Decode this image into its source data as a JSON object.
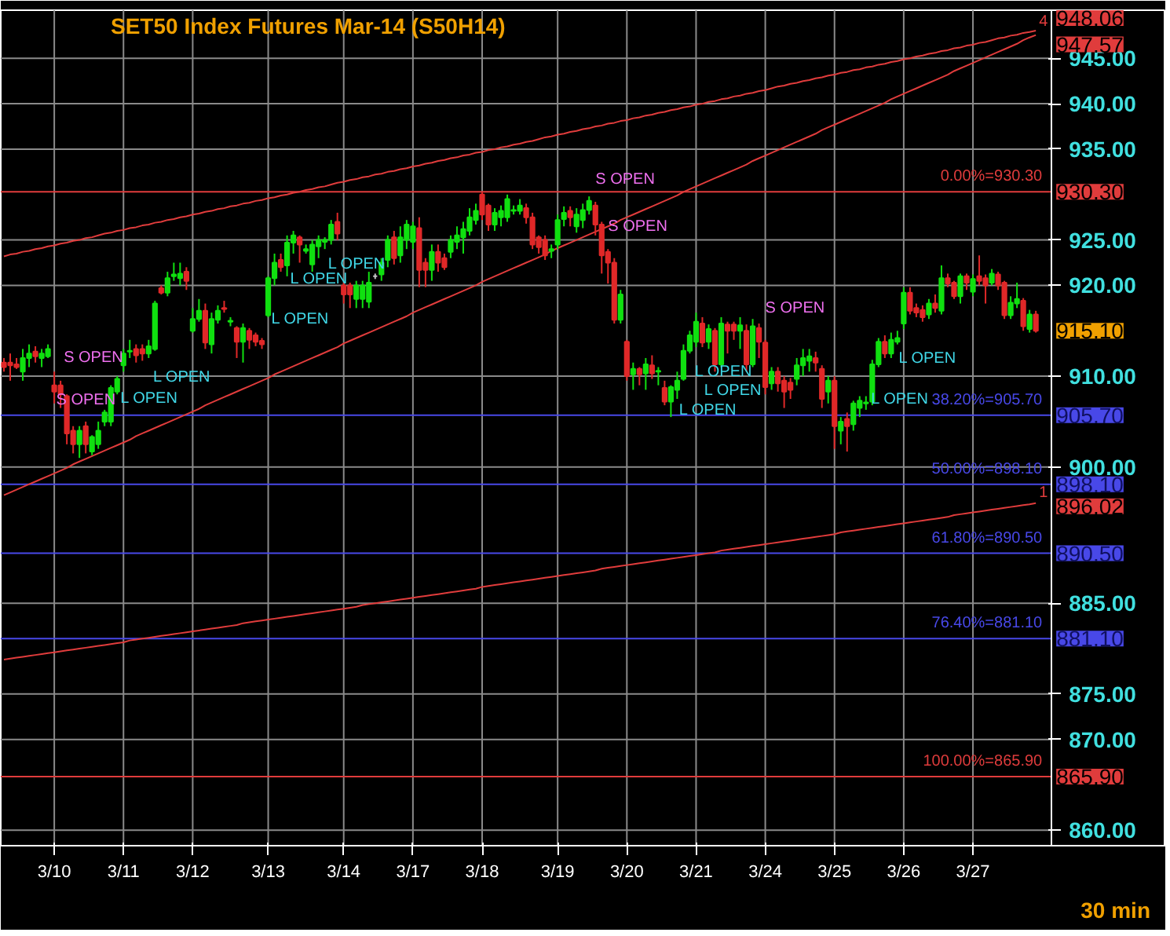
{
  "chart_data": {
    "type": "candlestick",
    "title": "SET50  Index Futures Mar-14  (S50H14)",
    "categories": [
      null,
      null,
      null,
      null,
      null,
      null,
      null,
      null,
      "3/10",
      null,
      null,
      null,
      null,
      null,
      null,
      null,
      null,
      null,
      null,
      "3/11",
      null,
      null,
      null,
      null,
      null,
      null,
      null,
      null,
      null,
      null,
      "3/12",
      null,
      null,
      null,
      null,
      null,
      null,
      null,
      null,
      null,
      null,
      null,
      "3/13",
      null,
      null,
      null,
      null,
      null,
      null,
      null,
      null,
      null,
      null,
      null,
      "3/14",
      null,
      null,
      null,
      null,
      null,
      null,
      null,
      null,
      null,
      null,
      "3/17",
      null,
      null,
      null,
      null,
      null,
      null,
      null,
      null,
      null,
      null,
      "3/18",
      null,
      null,
      null,
      null,
      null,
      null,
      null,
      null,
      null,
      null,
      null,
      "3/19",
      null,
      null,
      null,
      null,
      null,
      null,
      null,
      null,
      null,
      null,
      "3/20",
      null,
      null,
      null,
      null,
      null,
      null,
      null,
      null,
      null,
      null,
      "3/21",
      null,
      null,
      null,
      null,
      null,
      null,
      null,
      null,
      null,
      null,
      "3/24",
      null,
      null,
      null,
      null,
      null,
      null,
      null,
      null,
      null,
      null,
      "3/25",
      null,
      null,
      null,
      null,
      null,
      null,
      null,
      null,
      null,
      null,
      "3/26",
      null,
      null,
      null,
      null,
      null,
      null,
      null,
      null,
      null,
      null,
      "3/27",
      null,
      null,
      null,
      null,
      null,
      null,
      null,
      null,
      null,
      null
    ],
    "ohlc": [
      [
        911.5,
        912,
        910.5,
        911
      ],
      [
        911.5,
        912.5,
        909.5,
        911.2
      ],
      [
        911.3,
        912,
        910.8,
        911
      ],
      [
        910.5,
        913,
        909.5,
        912
      ],
      [
        912,
        913.5,
        911,
        912.5
      ],
      [
        912.7,
        913.3,
        911.5,
        912.2
      ],
      [
        912,
        913,
        911,
        912.5
      ],
      [
        912.2,
        913.5,
        912,
        913
      ],
      [
        909,
        910.5,
        907,
        908.3
      ],
      [
        909,
        909.5,
        906.5,
        908
      ],
      [
        907.8,
        908,
        902.5,
        903.7
      ],
      [
        904,
        904.5,
        901.5,
        902.5
      ],
      [
        902.5,
        904.5,
        901,
        904
      ],
      [
        904.5,
        905,
        901.5,
        902.5
      ],
      [
        901.7,
        903.5,
        901.3,
        903.3
      ],
      [
        902.5,
        905,
        902,
        904
      ],
      [
        905,
        906.3,
        904.5,
        906
      ],
      [
        905,
        909,
        904.5,
        908.7
      ],
      [
        908.3,
        910,
        908,
        909.7
      ],
      [
        911.2,
        913,
        910.5,
        912.5
      ],
      [
        912.7,
        914,
        912,
        912.8
      ],
      [
        913,
        913.5,
        911.5,
        912.3
      ],
      [
        913,
        913.5,
        911.7,
        912.5
      ],
      [
        912.5,
        914,
        912,
        913.3
      ],
      [
        913,
        918.3,
        912.8,
        918
      ],
      [
        919.7,
        920,
        919,
        919.2
      ],
      [
        919.2,
        921.5,
        918.8,
        920.8
      ],
      [
        921,
        922.5,
        920.5,
        921.2
      ],
      [
        920.8,
        922.5,
        920,
        921.3
      ],
      [
        921.5,
        922,
        919.5,
        920.5
      ],
      [
        915,
        917.5,
        914.8,
        916.3
      ],
      [
        916.3,
        918.5,
        916,
        917.2
      ],
      [
        917.2,
        918,
        913,
        913.7
      ],
      [
        913.5,
        917,
        912.5,
        916.3
      ],
      [
        916.2,
        917.8,
        915.8,
        917.2
      ],
      [
        917.5,
        918.3,
        917,
        917.4
      ],
      [
        916,
        916.5,
        915.5,
        916.1
      ],
      [
        915.3,
        915.5,
        912,
        913.8
      ],
      [
        913.8,
        915.8,
        911.5,
        915.3
      ],
      [
        915,
        915.3,
        913,
        914
      ],
      [
        914.5,
        914.8,
        913.3,
        913.8
      ],
      [
        913.9,
        914.2,
        913,
        913.5
      ],
      [
        916.7,
        921,
        916.5,
        920.8
      ],
      [
        920.8,
        923.5,
        920,
        922.5
      ],
      [
        922.8,
        923.5,
        921.5,
        922
      ],
      [
        922.2,
        925.5,
        921,
        924.7
      ],
      [
        924.7,
        926,
        923.5,
        925.5
      ],
      [
        925.3,
        925.5,
        922.5,
        924.5
      ],
      [
        923.8,
        924.5,
        923.5,
        924
      ],
      [
        922.3,
        925,
        921.5,
        924.5
      ],
      [
        924.3,
        925.5,
        923,
        925
      ],
      [
        924.8,
        925.3,
        924,
        925
      ],
      [
        925,
        927.2,
        924.5,
        926.7
      ],
      [
        927,
        928,
        925,
        925.7
      ],
      [
        920,
        920.3,
        918,
        919
      ],
      [
        920,
        920.3,
        917.5,
        919
      ],
      [
        918.5,
        920.5,
        917.5,
        920
      ],
      [
        918.5,
        920.5,
        917.5,
        920
      ],
      [
        918.2,
        921.5,
        917.5,
        920.3
      ],
      [
        921,
        921.3,
        920.7,
        921
      ],
      [
        921.2,
        923,
        920.5,
        922.5
      ],
      [
        922.8,
        925.5,
        922,
        925
      ],
      [
        925.3,
        926,
        922.3,
        923
      ],
      [
        923.3,
        926.5,
        922.5,
        925.3
      ],
      [
        925,
        927.2,
        924,
        926.7
      ],
      [
        924.8,
        927,
        924,
        926.5
      ],
      [
        926.3,
        927.5,
        919.8,
        921.7
      ],
      [
        922.5,
        923,
        919.8,
        921.7
      ],
      [
        921.7,
        924.5,
        920.5,
        923.7
      ],
      [
        923.7,
        924.5,
        921.5,
        922.5
      ],
      [
        923,
        923.5,
        921.7,
        922
      ],
      [
        923.7,
        925.5,
        923,
        925
      ],
      [
        924.8,
        926.5,
        924,
        925.5
      ],
      [
        925.3,
        927,
        923.5,
        926.2
      ],
      [
        926,
        928.5,
        925.5,
        927.5
      ],
      [
        927.2,
        929,
        926.7,
        928.2
      ],
      [
        930,
        930.3,
        927.2,
        927.8
      ],
      [
        928.8,
        929,
        926,
        926.7
      ],
      [
        926.7,
        928.5,
        926,
        928
      ],
      [
        927.5,
        928.8,
        926.5,
        928.2
      ],
      [
        927.5,
        930,
        927,
        929.5
      ],
      [
        928.2,
        928.8,
        927.8,
        928.3
      ],
      [
        928.2,
        929.5,
        927.8,
        928.8
      ],
      [
        928.5,
        929,
        926.8,
        927.5
      ],
      [
        927.5,
        928,
        924,
        924.5
      ],
      [
        925.3,
        925.5,
        923.5,
        924.2
      ],
      [
        925,
        925.5,
        922.8,
        923.3
      ],
      [
        923.8,
        924.5,
        923,
        924
      ],
      [
        924.5,
        927.8,
        924,
        927.2
      ],
      [
        927.3,
        928.7,
        926.5,
        928
      ],
      [
        928.2,
        928.7,
        926.5,
        927.5
      ],
      [
        926.5,
        928.5,
        925.8,
        927.8
      ],
      [
        927.2,
        929,
        926.3,
        928.3
      ],
      [
        928.3,
        929.8,
        927.8,
        929.3
      ],
      [
        928.8,
        929.2,
        925.5,
        926.7
      ],
      [
        926.7,
        927,
        921.3,
        923.3
      ],
      [
        923.7,
        924,
        920.2,
        922.5
      ],
      [
        922.5,
        923,
        915.8,
        916.2
      ],
      [
        916.2,
        919.5,
        915.8,
        919
      ],
      [
        913.8,
        914,
        909.5,
        910
      ],
      [
        910.2,
        911.5,
        908.5,
        910.8
      ],
      [
        910.8,
        911,
        909,
        910.2
      ],
      [
        910.3,
        912,
        908.5,
        911.3
      ],
      [
        911.2,
        912.3,
        909.7,
        910.3
      ],
      [
        910.5,
        911,
        909,
        910.6
      ],
      [
        908.7,
        909.5,
        906.8,
        907.2
      ],
      [
        907.2,
        909,
        905.5,
        908.8
      ],
      [
        908.5,
        910.5,
        907.5,
        909.5
      ],
      [
        909.7,
        913.5,
        909.5,
        912.8
      ],
      [
        912.8,
        915,
        912.5,
        914.5
      ],
      [
        913.8,
        917,
        913.2,
        916
      ],
      [
        915.8,
        916.5,
        913.2,
        913.7
      ],
      [
        913.8,
        915.7,
        913,
        915.2
      ],
      [
        915,
        915.3,
        910.5,
        911.3
      ],
      [
        911.3,
        916.5,
        911,
        915.8
      ],
      [
        915.7,
        916,
        912.5,
        915
      ],
      [
        915.7,
        916,
        914,
        915
      ],
      [
        915,
        916.5,
        913,
        915.6
      ],
      [
        915,
        915.7,
        910.5,
        911.3
      ],
      [
        911.3,
        916.3,
        911,
        915.5
      ],
      [
        915.3,
        915.8,
        912,
        913.8
      ],
      [
        913.7,
        914,
        908,
        908.8
      ],
      [
        909.2,
        911,
        908.5,
        910.5
      ],
      [
        910.5,
        911,
        908.3,
        909.2
      ],
      [
        909.5,
        910,
        906.5,
        908.3
      ],
      [
        909.3,
        909.8,
        907.5,
        908.5
      ],
      [
        909.7,
        912,
        909,
        911.2
      ],
      [
        911.2,
        913,
        910,
        912
      ],
      [
        911.7,
        913,
        910.5,
        912.2
      ],
      [
        912,
        912.7,
        910.5,
        911.5
      ],
      [
        910.8,
        911.2,
        906.5,
        907.5
      ],
      [
        908.3,
        910,
        907,
        909.5
      ],
      [
        909.5,
        910,
        902,
        904.5
      ],
      [
        904,
        905.5,
        902.5,
        905
      ],
      [
        905.3,
        906,
        901.7,
        904.5
      ],
      [
        904.7,
        907.3,
        904,
        907
      ],
      [
        906.5,
        907.8,
        905.5,
        907.3
      ],
      [
        907,
        907.8,
        906.3,
        907.1
      ],
      [
        907.2,
        911.8,
        906.8,
        911.3
      ],
      [
        911.3,
        914.2,
        911,
        913.8
      ],
      [
        913.8,
        914.5,
        912,
        912.5
      ],
      [
        912.5,
        914.8,
        912,
        914
      ],
      [
        913.8,
        915,
        913.5,
        914.2
      ],
      [
        915.8,
        919.8,
        915.2,
        919.2
      ],
      [
        919.2,
        919.8,
        916.8,
        917.2
      ],
      [
        917.5,
        918,
        916.5,
        917
      ],
      [
        917.3,
        917.8,
        916,
        916.5
      ],
      [
        916.8,
        918.5,
        916.3,
        918
      ],
      [
        918,
        919,
        917,
        917.5
      ],
      [
        917.2,
        922.2,
        916.8,
        920.8
      ],
      [
        920.8,
        921.3,
        919.8,
        920.2
      ],
      [
        920.3,
        920.5,
        918.5,
        918.8
      ],
      [
        918.8,
        921.3,
        918,
        921
      ],
      [
        921,
        921.3,
        919.5,
        920.3
      ],
      [
        919.3,
        921.2,
        918.8,
        920.7
      ],
      [
        921,
        923.3,
        920,
        920.5
      ],
      [
        920.8,
        921.2,
        918,
        920
      ],
      [
        920.3,
        921.8,
        920,
        921.3
      ],
      [
        921.2,
        921.5,
        919.5,
        920
      ],
      [
        920.3,
        920.5,
        916.3,
        916.7
      ],
      [
        916.7,
        918.8,
        916.3,
        918.1
      ],
      [
        918,
        920.3,
        917.5,
        918.5
      ],
      [
        918.3,
        918.6,
        915,
        915.5
      ],
      [
        915.2,
        917.3,
        914.8,
        916.8
      ],
      [
        916.8,
        917.2,
        914.8,
        915
      ]
    ],
    "series": [
      {
        "type": "line",
        "color": "#e03c3c",
        "values": [
          923.2,
          923.4,
          923.5,
          923.7,
          923.8,
          924.0,
          924.1,
          924.3,
          924.4,
          924.6,
          924.7,
          924.9,
          925.0,
          925.2,
          925.3,
          925.5,
          925.7,
          925.8,
          926.0,
          926.1,
          926.3,
          926.4,
          926.6,
          926.7,
          926.9,
          927.0,
          927.2,
          927.3,
          927.5,
          927.6,
          927.8,
          927.9,
          928.1,
          928.2,
          928.4,
          928.5,
          928.7,
          928.8,
          929.0,
          929.1,
          929.3,
          929.4,
          929.6,
          929.7,
          929.9,
          930.0,
          930.2,
          930.3,
          930.5,
          930.6,
          930.8,
          930.9,
          931.1,
          931.3,
          931.4,
          931.6,
          931.7,
          931.9,
          932.0,
          932.2,
          932.3,
          932.5,
          932.6,
          932.8,
          932.9,
          933.1,
          933.2,
          933.4,
          933.5,
          933.7,
          933.8,
          934.0,
          934.1,
          934.3,
          934.4,
          934.6,
          934.7,
          934.9,
          935.0,
          935.2,
          935.3,
          935.5,
          935.6,
          935.8,
          935.9,
          936.1,
          936.3,
          936.4,
          936.6,
          936.7,
          936.9,
          937.0,
          937.2,
          937.3,
          937.5,
          937.6,
          937.8,
          937.9,
          938.1,
          938.2,
          938.4,
          938.5,
          938.7,
          938.8,
          939.0,
          939.1,
          939.3,
          939.4,
          939.6,
          939.7,
          939.9,
          940.0,
          940.2,
          940.3,
          940.5,
          940.6,
          940.8,
          940.9,
          941.1,
          941.2,
          941.4,
          941.5,
          941.7,
          941.9,
          942.0,
          942.2,
          942.3,
          942.5,
          942.6,
          942.8,
          942.9,
          943.1,
          943.2,
          943.4,
          943.5,
          943.7,
          943.8,
          944.0,
          944.1,
          944.3,
          944.4,
          944.6,
          944.7,
          944.9,
          945.0,
          945.2,
          945.3,
          945.5,
          945.6,
          945.8,
          945.9,
          946.1,
          946.2,
          946.4,
          946.5,
          946.7,
          946.8,
          947.0,
          947.2,
          947.3,
          947.5,
          947.6,
          947.8,
          947.9,
          948.06
        ]
      },
      {
        "type": "line",
        "color": "#e03c3c",
        "values": [
          896.9,
          897.2,
          897.5,
          897.8,
          898.1,
          898.4,
          898.7,
          899.0,
          899.3,
          899.6,
          899.9,
          900.3,
          900.6,
          900.9,
          901.2,
          901.5,
          901.8,
          902.1,
          902.4,
          902.7,
          903.0,
          903.4,
          903.7,
          904.0,
          904.3,
          904.6,
          904.9,
          905.2,
          905.5,
          905.8,
          906.1,
          906.4,
          906.8,
          907.1,
          907.4,
          907.7,
          908.0,
          908.3,
          908.6,
          908.9,
          909.2,
          909.5,
          909.8,
          910.2,
          910.5,
          910.8,
          911.1,
          911.4,
          911.7,
          912.0,
          912.3,
          912.6,
          912.9,
          913.2,
          913.6,
          913.9,
          914.2,
          914.5,
          914.8,
          915.1,
          915.4,
          915.7,
          916.0,
          916.3,
          916.6,
          917.0,
          917.3,
          917.6,
          917.9,
          918.2,
          918.5,
          918.8,
          919.1,
          919.4,
          919.7,
          920.0,
          920.4,
          920.7,
          921.0,
          921.3,
          921.6,
          921.9,
          922.2,
          922.5,
          922.8,
          923.1,
          923.4,
          923.8,
          924.1,
          924.4,
          924.7,
          925.0,
          925.3,
          925.6,
          925.9,
          926.2,
          926.5,
          926.8,
          927.2,
          927.5,
          927.8,
          928.1,
          928.4,
          928.7,
          929.0,
          929.3,
          929.6,
          929.9,
          930.3,
          930.6,
          930.9,
          931.2,
          931.5,
          931.8,
          932.1,
          932.4,
          932.7,
          933.0,
          933.3,
          933.7,
          934.0,
          934.3,
          934.6,
          934.9,
          935.2,
          935.5,
          935.8,
          936.1,
          936.4,
          936.7,
          937.1,
          937.4,
          937.7,
          938.0,
          938.3,
          938.6,
          938.9,
          939.2,
          939.5,
          939.8,
          940.1,
          940.5,
          940.8,
          941.1,
          941.4,
          941.7,
          942.0,
          942.3,
          942.6,
          942.9,
          943.2,
          943.6,
          943.9,
          944.2,
          944.5,
          944.8,
          945.1,
          945.4,
          945.7,
          946.0,
          946.3,
          946.6,
          947.0,
          947.3,
          947.57
        ]
      },
      {
        "type": "line",
        "color": "#e03c3c",
        "values": [
          878.8,
          878.9,
          879.0,
          879.1,
          879.2,
          879.3,
          879.4,
          879.5,
          879.6,
          879.7,
          879.8,
          879.9,
          880.0,
          880.1,
          880.2,
          880.3,
          880.4,
          880.5,
          880.6,
          880.7,
          880.9,
          881.0,
          881.1,
          881.2,
          881.3,
          881.4,
          881.5,
          881.6,
          881.7,
          881.8,
          881.9,
          882.0,
          882.1,
          882.2,
          882.3,
          882.4,
          882.5,
          882.6,
          882.8,
          882.9,
          883.0,
          883.1,
          883.2,
          883.3,
          883.4,
          883.5,
          883.6,
          883.7,
          883.8,
          883.9,
          884.0,
          884.1,
          884.2,
          884.3,
          884.4,
          884.5,
          884.6,
          884.8,
          884.9,
          885.0,
          885.1,
          885.2,
          885.3,
          885.4,
          885.5,
          885.6,
          885.7,
          885.8,
          885.9,
          886.0,
          886.1,
          886.2,
          886.3,
          886.4,
          886.5,
          886.6,
          886.8,
          886.9,
          887.0,
          887.1,
          887.2,
          887.3,
          887.4,
          887.5,
          887.6,
          887.7,
          887.8,
          887.9,
          888.0,
          888.1,
          888.2,
          888.3,
          888.4,
          888.5,
          888.6,
          888.8,
          888.9,
          889.0,
          889.1,
          889.2,
          889.3,
          889.4,
          889.5,
          889.6,
          889.7,
          889.8,
          889.9,
          890.0,
          890.1,
          890.2,
          890.3,
          890.4,
          890.5,
          890.6,
          890.8,
          890.9,
          891.0,
          891.1,
          891.2,
          891.3,
          891.4,
          891.5,
          891.6,
          891.7,
          891.8,
          891.9,
          892.0,
          892.1,
          892.2,
          892.3,
          892.4,
          892.5,
          892.6,
          892.8,
          892.9,
          893.0,
          893.1,
          893.2,
          893.3,
          893.4,
          893.5,
          893.6,
          893.7,
          893.8,
          893.9,
          894.0,
          894.1,
          894.2,
          894.3,
          894.4,
          894.5,
          894.7,
          894.8,
          894.9,
          895.0,
          895.1,
          895.2,
          895.3,
          895.4,
          895.5,
          895.6,
          895.7,
          895.8,
          895.9,
          896.02
        ]
      }
    ],
    "ylim": [
      858.3,
      950.3
    ],
    "yticks": [
      {
        "value": 945,
        "label": "945.00"
      },
      {
        "value": 940,
        "label": "940.00"
      },
      {
        "value": 935,
        "label": "935.00"
      },
      {
        "value": 925,
        "label": "925.00"
      },
      {
        "value": 920,
        "label": "920.00"
      },
      {
        "value": 910,
        "label": "910.00"
      },
      {
        "value": 900,
        "label": "900.00"
      },
      {
        "value": 885,
        "label": "885.00"
      },
      {
        "value": 875,
        "label": "875.00"
      },
      {
        "value": 870,
        "label": "870.00"
      },
      {
        "value": 860,
        "label": "860.00"
      }
    ],
    "grid": true,
    "line_style": "solid",
    "ref_lines": [
      {
        "axis": "y",
        "value": 930.3,
        "label": "0.00%=930.30",
        "color": "#e03c3c"
      },
      {
        "axis": "y",
        "value": 905.7,
        "label": "38.20%=905.70",
        "color": "#4848e8"
      },
      {
        "axis": "y",
        "value": 898.1,
        "label": "50.00%=898.10",
        "color": "#4848e8"
      },
      {
        "axis": "y",
        "value": 890.5,
        "label": "61.80%=890.50",
        "color": "#4848e8"
      },
      {
        "axis": "y",
        "value": 881.1,
        "label": "76.40%=881.10",
        "color": "#4848e8"
      },
      {
        "axis": "y",
        "value": 865.9,
        "label": "100.00%=865.90",
        "color": "#e03c3c"
      }
    ],
    "annotations": [
      "S OPEN",
      "S OPEN",
      "L OPEN",
      "L OPEN",
      "L OPEN",
      "L OPEN",
      "L OPEN",
      "S OPEN",
      "S OPEN",
      "L OPEN",
      "L OPEN",
      "L OPEN",
      "S OPEN",
      "L OPEN",
      "L OPEN",
      "1",
      "4",
      "948.06",
      "947.57",
      "930.30",
      "905.70",
      "898.10",
      "896.02",
      "890.50",
      "881.10",
      "865.90",
      "915.10",
      "30 min"
    ]
  }
}
